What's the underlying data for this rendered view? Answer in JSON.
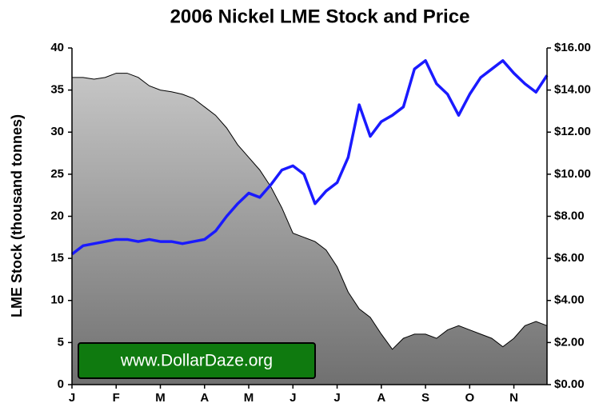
{
  "chart_data": {
    "type": "area-line",
    "title": "2006 Nickel LME Stock and Price",
    "y_label": "LME Stock (thousand tonnes)",
    "watermark": "www.DollarDaze.org",
    "categories": [
      "J",
      null,
      null,
      null,
      "F",
      null,
      null,
      null,
      "M",
      null,
      null,
      null,
      "A",
      null,
      null,
      null,
      "M",
      null,
      null,
      null,
      "J",
      null,
      null,
      null,
      "J",
      null,
      null,
      null,
      "A",
      null,
      null,
      null,
      "S",
      null,
      null,
      null,
      "O",
      null,
      null,
      null,
      "N",
      null,
      null,
      null
    ],
    "series": [
      {
        "type": "area",
        "color": "#9a9a9a",
        "axis": "y",
        "values": [
          36.5,
          36.5,
          36.3,
          36.5,
          37,
          37,
          36.5,
          35.5,
          35,
          34.8,
          34.5,
          34,
          33,
          32,
          30.5,
          28.5,
          27,
          25.5,
          23.5,
          21,
          18,
          17.5,
          17,
          16,
          14,
          11,
          9,
          8,
          6,
          4.2,
          5.5,
          6,
          6,
          5.5,
          6.5,
          7,
          6.5,
          6,
          5.5,
          4.5,
          5.5,
          7,
          7.5,
          7
        ]
      },
      {
        "type": "line",
        "color": "#1a1aff",
        "axis": "y2",
        "values": [
          6.2,
          6.6,
          6.7,
          6.8,
          6.9,
          6.9,
          6.8,
          6.9,
          6.8,
          6.8,
          6.7,
          6.8,
          6.9,
          7.3,
          8.0,
          8.6,
          9.1,
          8.9,
          9.5,
          10.2,
          10.4,
          10.0,
          8.6,
          9.2,
          9.6,
          10.8,
          13.3,
          11.8,
          12.5,
          12.8,
          13.2,
          15.0,
          15.4,
          14.3,
          13.8,
          12.8,
          13.8,
          14.6,
          15.0,
          15.4,
          14.8,
          14.3,
          13.9,
          14.7
        ]
      }
    ],
    "ylim": [
      0,
      40
    ],
    "yticks": [
      0,
      5,
      10,
      15,
      20,
      25,
      30,
      35,
      40
    ],
    "y2lim": [
      0,
      16
    ],
    "y2ticks": [
      {
        "value": 0,
        "label": "$0.00"
      },
      {
        "value": 2,
        "label": "$2.00"
      },
      {
        "value": 4,
        "label": "$4.00"
      },
      {
        "value": 6,
        "label": "$6.00"
      },
      {
        "value": 8,
        "label": "$8.00"
      },
      {
        "value": 10,
        "label": "$10.00"
      },
      {
        "value": 12,
        "label": "$12.00"
      },
      {
        "value": 14,
        "label": "$14.00"
      },
      {
        "value": 16,
        "label": "$16.00"
      }
    ],
    "grid": false
  }
}
